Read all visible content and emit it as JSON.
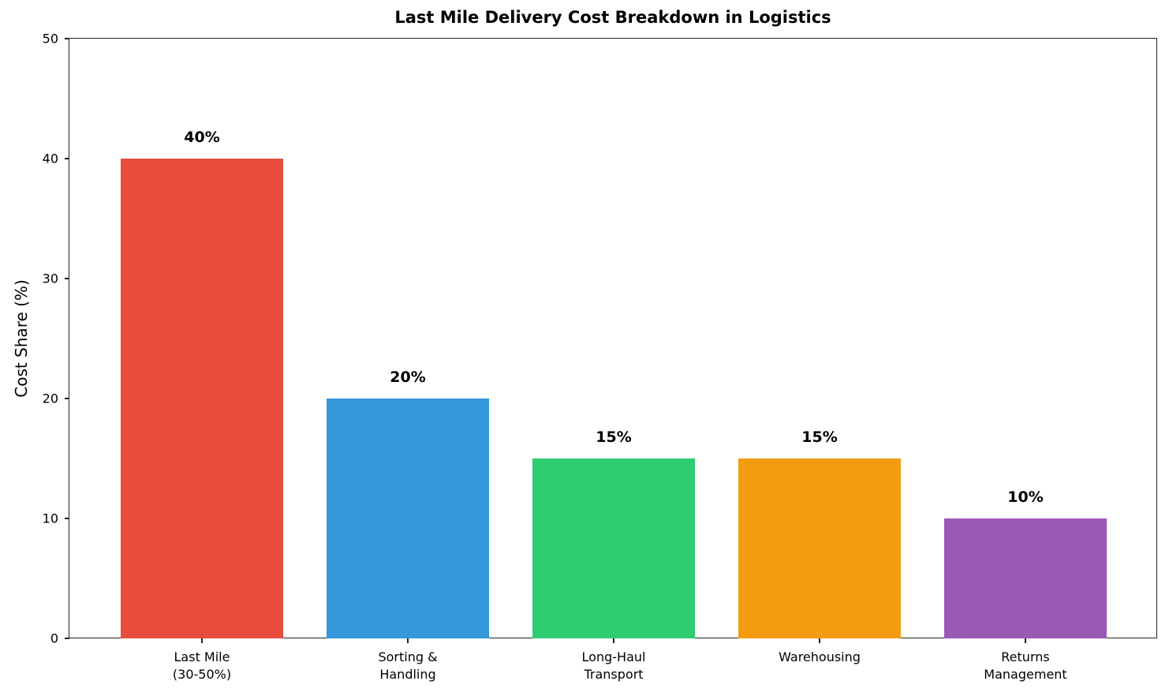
{
  "chart_data": {
    "type": "bar",
    "title": "Last Mile Delivery Cost Breakdown in Logistics",
    "xlabel": "",
    "ylabel": "Cost Share (%)",
    "ylim": [
      0,
      50
    ],
    "yticks": [
      0,
      10,
      20,
      30,
      40,
      50
    ],
    "grid": false,
    "categories": [
      "Last Mile\n(30-50%)",
      "Sorting &\nHandling",
      "Long-Haul\nTransport",
      "Warehousing",
      "Returns\nManagement"
    ],
    "values": [
      40,
      20,
      15,
      15,
      10
    ],
    "value_labels": [
      "40%",
      "20%",
      "15%",
      "15%",
      "10%"
    ],
    "colors": [
      "#e74c3c",
      "#3498db",
      "#2ecc71",
      "#f39c12",
      "#9b59b6"
    ]
  }
}
